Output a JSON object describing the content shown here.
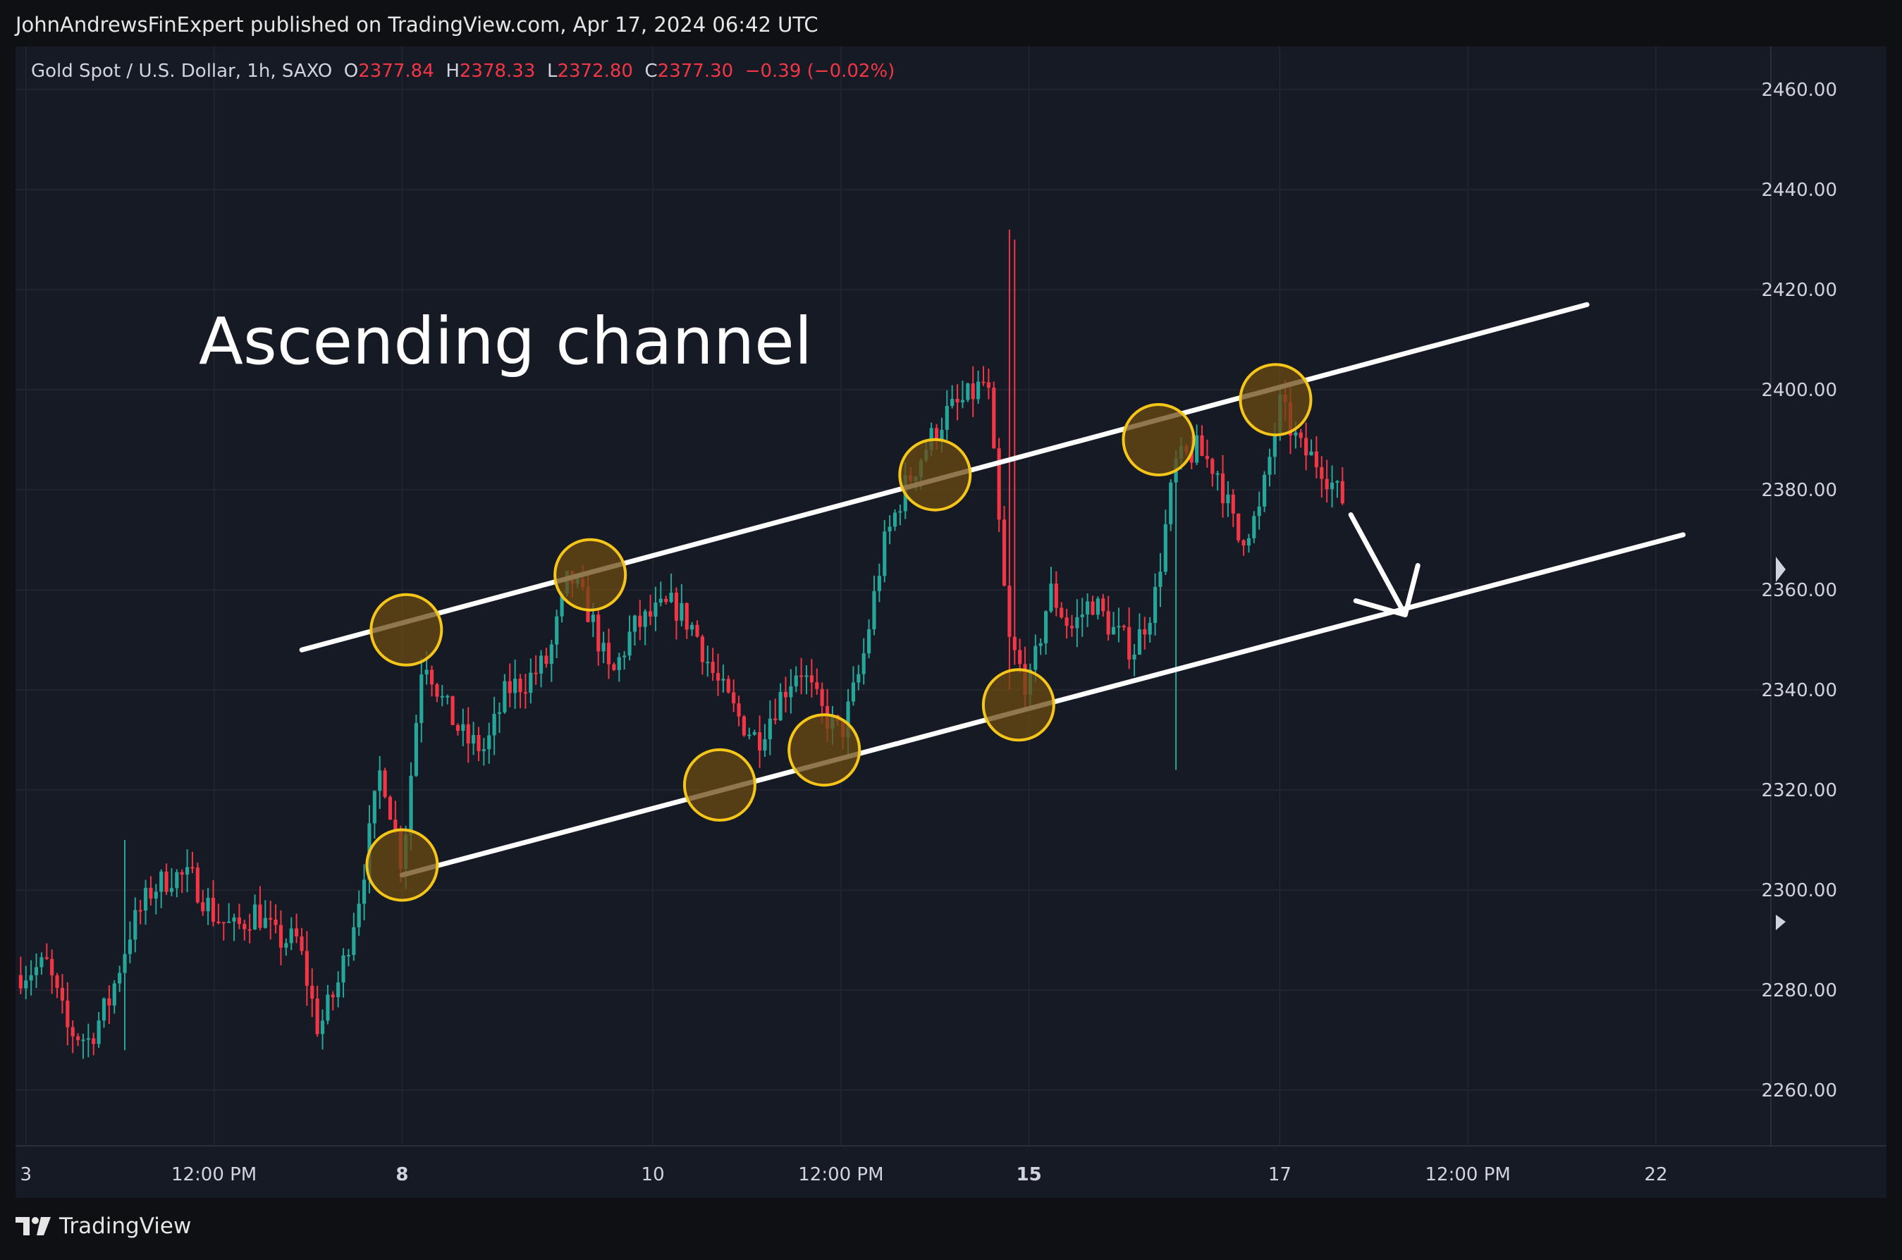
{
  "header": {
    "publisher_line": "JohnAndrewsFinExpert published on TradingView.com, Apr 17, 2024 06:42 UTC"
  },
  "legend": {
    "symbol": "Gold Spot / U.S. Dollar, 1h, SAXO",
    "open_label": "O",
    "open": "2377.84",
    "high_label": "H",
    "high": "2378.33",
    "low_label": "L",
    "low": "2372.80",
    "close_label": "C",
    "close": "2377.30",
    "change": "−0.39 (−0.02%)"
  },
  "annotation": {
    "text": "Ascending channel"
  },
  "footer": {
    "brand": "TradingView",
    "logo_icon": "tradingview-logo-icon"
  },
  "colors": {
    "background": "#161a25",
    "up": "#26a69a",
    "down": "#f23645",
    "channel_line": "#ffffff",
    "touch_circle_stroke": "#f5c518",
    "touch_circle_fill": "#6b4a12"
  },
  "chart_data": {
    "type": "candlestick",
    "symbol": "Gold Spot / U.S. Dollar",
    "interval": "1h",
    "ylim": [
      2250,
      2465
    ],
    "y_ticks": [
      "2260.00",
      "2280.00",
      "2300.00",
      "2320.00",
      "2340.00",
      "2360.00",
      "2380.00",
      "2400.00",
      "2420.00",
      "2440.00",
      "2460.00"
    ],
    "x_ticks": [
      {
        "label": "3",
        "t": 0.5,
        "bold": false
      },
      {
        "label": "12:00 PM",
        "t": 9.5,
        "bold": false
      },
      {
        "label": "8",
        "t": 18.5,
        "bold": true
      },
      {
        "label": "10",
        "t": 30.5,
        "bold": false
      },
      {
        "label": "12:00 PM",
        "t": 39.5,
        "bold": false
      },
      {
        "label": "15",
        "t": 48.5,
        "bold": true
      },
      {
        "label": "17",
        "t": 60.5,
        "bold": false
      },
      {
        "label": "12:00 PM",
        "t": 69.5,
        "bold": false
      },
      {
        "label": "22",
        "t": 78.5,
        "bold": false
      }
    ],
    "x_range": [
      0,
      84
    ],
    "anchor_points": [
      [
        0,
        2283
      ],
      [
        1.5,
        2285
      ],
      [
        2.5,
        2272
      ],
      [
        3.5,
        2270
      ],
      [
        4.5,
        2278
      ],
      [
        5.5,
        2292
      ],
      [
        6.5,
        2300
      ],
      [
        7.5,
        2303
      ],
      [
        8.5,
        2302
      ],
      [
        9.5,
        2295
      ],
      [
        10.5,
        2292
      ],
      [
        11.5,
        2296
      ],
      [
        12.5,
        2290
      ],
      [
        13.5,
        2290
      ],
      [
        14.5,
        2272
      ],
      [
        15.5,
        2282
      ],
      [
        16.5,
        2300
      ],
      [
        17.5,
        2325
      ],
      [
        18.5,
        2305
      ],
      [
        19.5,
        2348
      ],
      [
        20.5,
        2337
      ],
      [
        21.5,
        2330
      ],
      [
        22.5,
        2328
      ],
      [
        23.5,
        2340
      ],
      [
        24.5,
        2342
      ],
      [
        25.5,
        2346
      ],
      [
        26.5,
        2363
      ],
      [
        27.5,
        2355
      ],
      [
        28.5,
        2342
      ],
      [
        29.5,
        2352
      ],
      [
        30.5,
        2355
      ],
      [
        31.5,
        2357
      ],
      [
        32.5,
        2352
      ],
      [
        33.5,
        2342
      ],
      [
        34.5,
        2335
      ],
      [
        35.5,
        2330
      ],
      [
        36.5,
        2338
      ],
      [
        37.5,
        2345
      ],
      [
        38.5,
        2336
      ],
      [
        39.5,
        2331
      ],
      [
        40.5,
        2345
      ],
      [
        41.5,
        2368
      ],
      [
        42.5,
        2380
      ],
      [
        43.5,
        2388
      ],
      [
        44.5,
        2395
      ],
      [
        45.5,
        2398
      ],
      [
        46.5,
        2402
      ],
      [
        47.5,
        2350
      ],
      [
        48.5,
        2340
      ],
      [
        49.5,
        2360
      ],
      [
        50.5,
        2352
      ],
      [
        51.5,
        2358
      ],
      [
        52.5,
        2352
      ],
      [
        53.5,
        2348
      ],
      [
        54.5,
        2358
      ],
      [
        55.5,
        2385
      ],
      [
        56.5,
        2388
      ],
      [
        57.5,
        2384
      ],
      [
        58.5,
        2370
      ],
      [
        59.5,
        2375
      ],
      [
        60.5,
        2397
      ],
      [
        61.5,
        2388
      ],
      [
        62.5,
        2385
      ],
      [
        63.5,
        2377.3
      ]
    ],
    "channel": {
      "upper": {
        "t1": 13.7,
        "p1": 2348,
        "t2": 75.2,
        "p2": 2417
      },
      "lower": {
        "t1": 18.5,
        "p1": 2303,
        "t2": 79.8,
        "p2": 2371
      }
    },
    "touch_points": [
      {
        "t": 18.7,
        "p": 2352
      },
      {
        "t": 27.5,
        "p": 2363
      },
      {
        "t": 44.0,
        "p": 2383
      },
      {
        "t": 54.7,
        "p": 2390
      },
      {
        "t": 60.3,
        "p": 2398
      },
      {
        "t": 18.5,
        "p": 2305
      },
      {
        "t": 33.7,
        "p": 2321
      },
      {
        "t": 38.7,
        "p": 2328
      },
      {
        "t": 48.0,
        "p": 2337
      }
    ],
    "forecast_arrow": {
      "t1": 63.9,
      "p1": 2375,
      "t2": 66.5,
      "p2": 2355
    }
  }
}
